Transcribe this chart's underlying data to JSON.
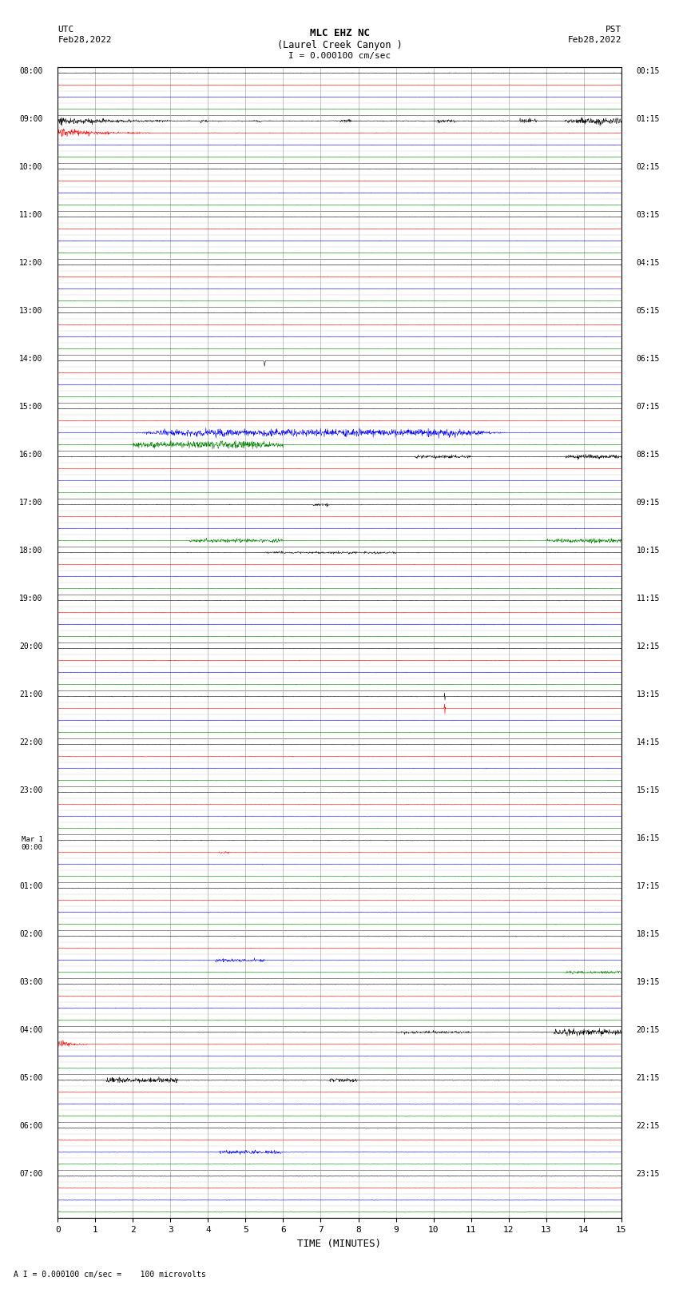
{
  "title_line1": "MLC EHZ NC",
  "title_line2": "(Laurel Creek Canyon )",
  "title_line3": "I = 0.000100 cm/sec",
  "left_header_line1": "UTC",
  "left_header_line2": "Feb28,2022",
  "right_header_line1": "PST",
  "right_header_line2": "Feb28,2022",
  "bottom_label": "TIME (MINUTES)",
  "footer_note": "A I = 0.000100 cm/sec =    100 microvolts",
  "xlim": [
    0,
    15
  ],
  "figsize": [
    8.5,
    16.13
  ],
  "dpi": 100,
  "bg_color": "#ffffff",
  "trace_colors": [
    "black",
    "red",
    "blue",
    "green"
  ],
  "hour_grid_color": "#777777",
  "minor_grid_color": "#cccccc",
  "vert_grid_color": "#aaaaaa",
  "n_hour_rows": 24,
  "n_traces_per_row": 4,
  "noise_seed": 42,
  "hour_labels_utc": [
    "08:00",
    "09:00",
    "10:00",
    "11:00",
    "12:00",
    "13:00",
    "14:00",
    "15:00",
    "16:00",
    "17:00",
    "18:00",
    "19:00",
    "20:00",
    "21:00",
    "22:00",
    "23:00",
    "Mar 1\n00:00",
    "01:00",
    "02:00",
    "03:00",
    "04:00",
    "05:00",
    "06:00",
    "07:00"
  ],
  "hour_labels_pst": [
    "00:15",
    "01:15",
    "02:15",
    "03:15",
    "04:15",
    "05:15",
    "06:15",
    "07:15",
    "08:15",
    "09:15",
    "10:15",
    "11:15",
    "12:15",
    "13:15",
    "14:15",
    "15:15",
    "16:15",
    "17:15",
    "18:15",
    "19:15",
    "20:15",
    "21:15",
    "22:15",
    "23:15"
  ]
}
